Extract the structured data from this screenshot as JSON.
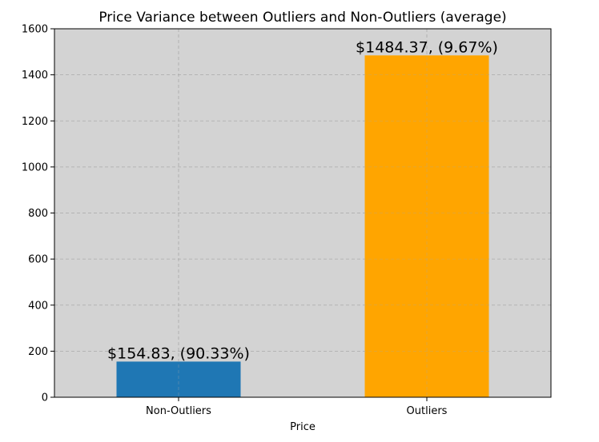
{
  "chart_data": {
    "type": "bar",
    "title": "Price Variance between Outliers and Non-Outliers (average)",
    "xlabel": "Price",
    "ylabel": "",
    "categories": [
      "Non-Outliers",
      "Outliers"
    ],
    "values": [
      154.83,
      1484.37
    ],
    "data_labels": [
      "$154.83, (90.33%)",
      "$1484.37, (9.67%)"
    ],
    "colors": [
      "#1f77b4",
      "#ffa500"
    ],
    "ylim": [
      0,
      1600
    ],
    "yticks": [
      0,
      200,
      400,
      600,
      800,
      1000,
      1200,
      1400,
      1600
    ],
    "grid": true,
    "background": "#d3d3d3"
  }
}
